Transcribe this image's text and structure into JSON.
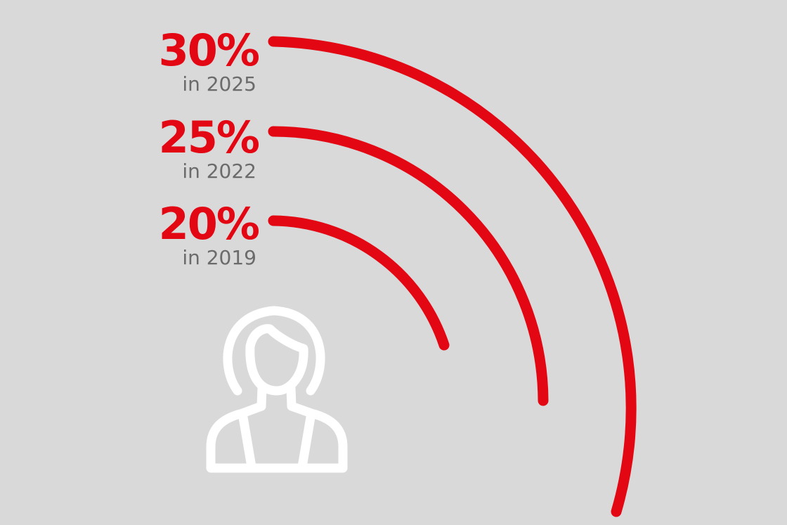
{
  "colors": {
    "background": "#d9d9d9",
    "accent": "#e30613",
    "secondary_text": "#6b6b6b",
    "icon": "#ffffff"
  },
  "icon": "woman-avatar-icon",
  "stats": [
    {
      "value": "30%",
      "label": "in 2025"
    },
    {
      "value": "25%",
      "label": "in 2022"
    },
    {
      "value": "20%",
      "label": "in 2019"
    }
  ]
}
